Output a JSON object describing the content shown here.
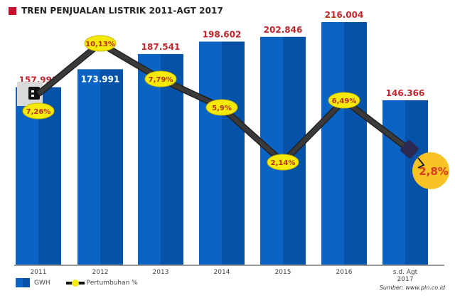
{
  "title": "TREN PENJUALAN LISTRIK 2011-AGT 2017",
  "source": "Sumber: www.pln.co.id",
  "legend": {
    "bar_label": "GWH",
    "line_label": "Pertumbuhan %"
  },
  "colors": {
    "bar_light": "#0b63c4",
    "bar_dark": "#0552a8",
    "value_label": "#c0272d",
    "badge_fill": "#f5e90a",
    "badge_text": "#b5301a",
    "line": "#3a3a3a",
    "title_square": "#c8102e"
  },
  "chart_data": {
    "type": "bar",
    "title": "TREN PENJUALAN LISTRIK 2011-AGT 2017",
    "xlabel": "",
    "ylabel": "",
    "categories": [
      "2011",
      "2012",
      "2013",
      "2014",
      "2015",
      "2016",
      "s.d. Agt 2017"
    ],
    "series": [
      {
        "name": "GWH",
        "type": "bar",
        "values": [
          157993,
          173991,
          187541,
          198602,
          202846,
          216004,
          146366
        ],
        "labels": [
          "157.993",
          "173.991",
          "187.541",
          "198.602",
          "202.846",
          "216.004",
          "146.366"
        ]
      },
      {
        "name": "Pertumbuhan %",
        "type": "line",
        "values": [
          7.26,
          10.13,
          7.79,
          5.9,
          2.14,
          6.49,
          2.8
        ],
        "labels": [
          "7,26%",
          "10,13%",
          "7,79%",
          "5,9%",
          "2,14%",
          "6,49%",
          "2,8%"
        ]
      }
    ],
    "grid": false,
    "legend_position": "bottom-left"
  }
}
